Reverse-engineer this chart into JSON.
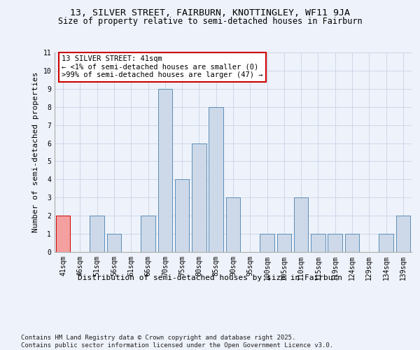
{
  "title_line1": "13, SILVER STREET, FAIRBURN, KNOTTINGLEY, WF11 9JA",
  "title_line2": "Size of property relative to semi-detached houses in Fairburn",
  "xlabel": "Distribution of semi-detached houses by size in Fairburn",
  "ylabel": "Number of semi-detached properties",
  "categories": [
    "41sqm",
    "46sqm",
    "51sqm",
    "56sqm",
    "61sqm",
    "66sqm",
    "70sqm",
    "75sqm",
    "80sqm",
    "85sqm",
    "90sqm",
    "95sqm",
    "100sqm",
    "105sqm",
    "110sqm",
    "115sqm",
    "119sqm",
    "124sqm",
    "129sqm",
    "134sqm",
    "139sqm"
  ],
  "values": [
    2,
    0,
    2,
    1,
    0,
    2,
    9,
    4,
    6,
    8,
    3,
    0,
    1,
    1,
    3,
    1,
    1,
    1,
    0,
    1,
    2
  ],
  "highlight_index": 0,
  "bar_color": "#cdd9e8",
  "bar_edge_color": "#5b8db8",
  "highlight_bar_color": "#f4a0a0",
  "highlight_bar_edge_color": "#cc0000",
  "annotation_box_text": "13 SILVER STREET: 41sqm\n← <1% of semi-detached houses are smaller (0)\n>99% of semi-detached houses are larger (47) →",
  "annotation_box_color": "#ffffff",
  "annotation_box_edge_color": "#cc0000",
  "ylim": [
    0,
    11
  ],
  "yticks": [
    0,
    1,
    2,
    3,
    4,
    5,
    6,
    7,
    8,
    9,
    10,
    11
  ],
  "grid_color": "#c8d4e8",
  "background_color": "#eef2fa",
  "footer_text": "Contains HM Land Registry data © Crown copyright and database right 2025.\nContains public sector information licensed under the Open Government Licence v3.0.",
  "title_fontsize": 9.5,
  "subtitle_fontsize": 8.5,
  "axis_label_fontsize": 8,
  "tick_fontsize": 7,
  "annotation_fontsize": 7.5,
  "footer_fontsize": 6.5
}
